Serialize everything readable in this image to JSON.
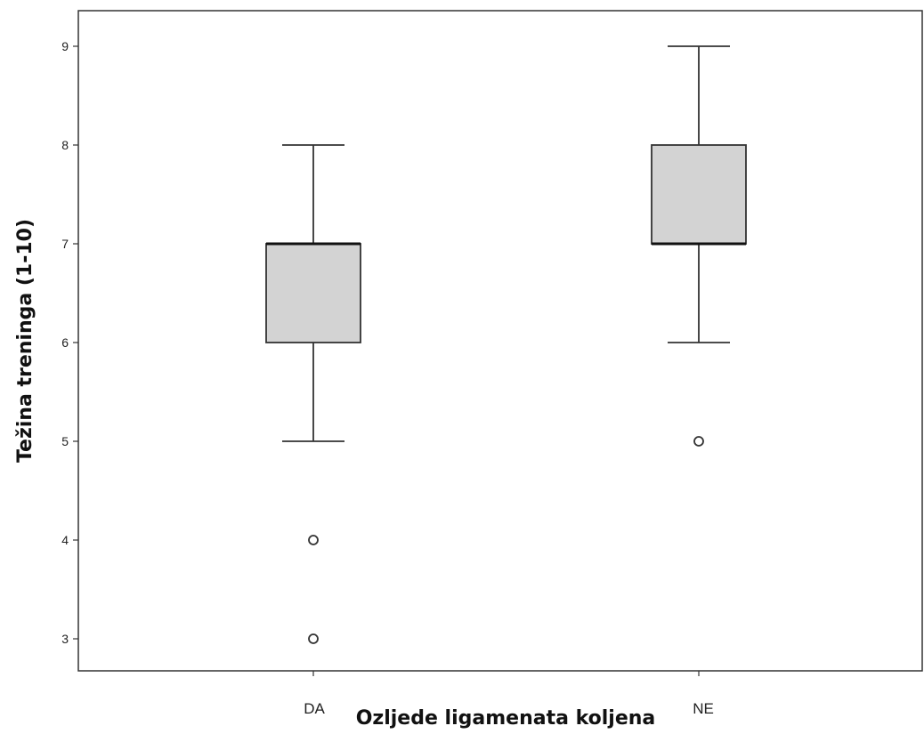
{
  "chart_data": {
    "type": "boxplot",
    "xlabel": "Ozljede ligamenata koljena",
    "ylabel": "Težina treninga (1-10)",
    "ylim": [
      2.7,
      9.3
    ],
    "yticks": [
      3,
      4,
      5,
      6,
      7,
      8,
      9
    ],
    "categories": [
      "DA",
      "NE"
    ],
    "boxes": [
      {
        "category": "DA",
        "whisker_low": 5,
        "q1": 6,
        "median": 7,
        "q3": 7,
        "whisker_high": 8,
        "outliers": [
          4,
          3
        ]
      },
      {
        "category": "NE",
        "whisker_low": 6,
        "q1": 7,
        "median": 7,
        "q3": 8,
        "whisker_high": 9,
        "outliers": [
          5
        ]
      }
    ],
    "grid": false,
    "box_fill": "#d3d3d3",
    "line_color": "#333333"
  }
}
